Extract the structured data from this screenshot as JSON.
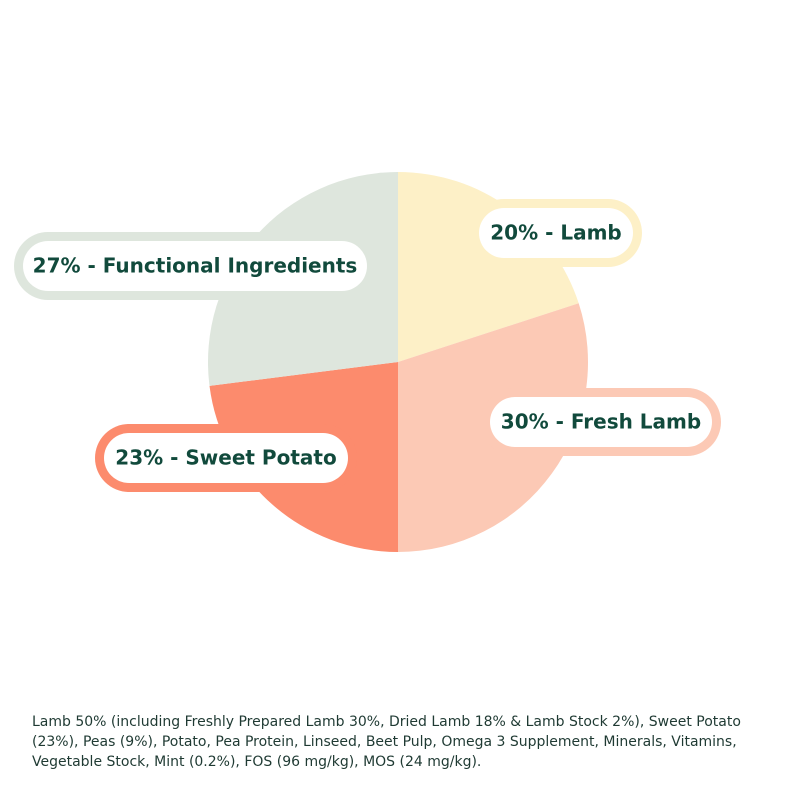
{
  "chart_data": {
    "type": "pie",
    "values": [
      20,
      30,
      23,
      27
    ],
    "value_labels": [
      "20% - Lamb",
      "30% - Fresh Lamb",
      "23% - Sweet Potato",
      "27% - Functional Ingredients"
    ],
    "colors": [
      "#fdf0c7",
      "#fcc9b5",
      "#fc8b6d",
      "#dee6dd"
    ],
    "start_angle": 0,
    "direction": "clockwise",
    "footnote": "Lamb 50% (including Freshly Prepared Lamb 30%, Dried Lamb 18% & Lamb Stock 2%), Sweet Potato (23%), Peas (9%), Potato, Pea Protein, Linseed, Beet Pulp, Omega 3 Supplement, Minerals, Vitamins, Vegetable Stock, Mint (0.2%), FOS (96 mg/kg), MOS (24 mg/kg)."
  }
}
